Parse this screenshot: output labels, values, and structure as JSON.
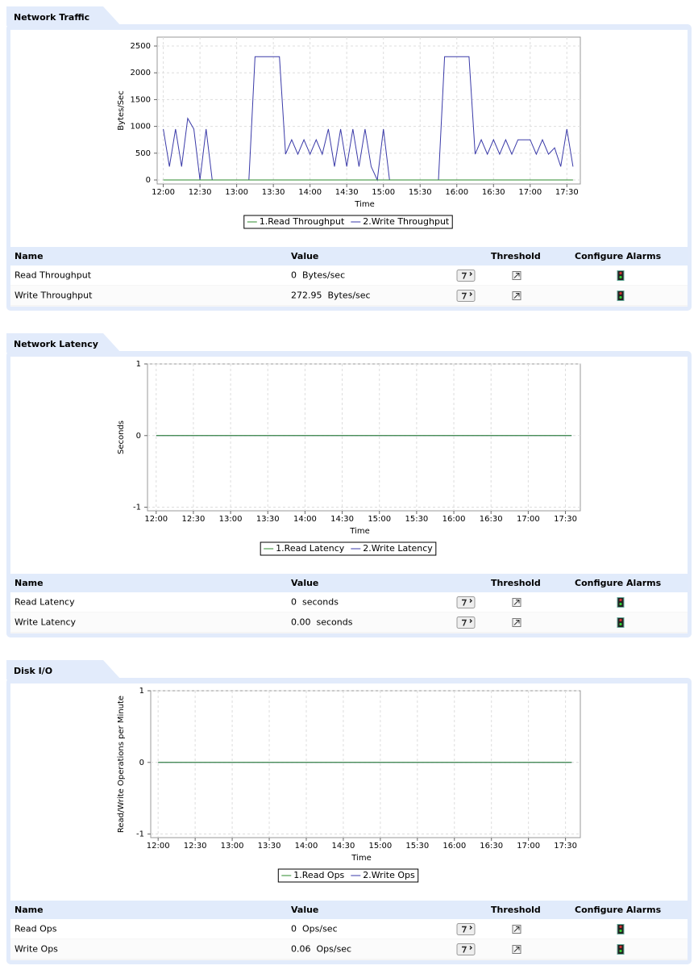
{
  "chart_data": [
    {
      "type": "line",
      "title": "Network Traffic",
      "x_label": "Time",
      "y_label": "Bytes/Sec",
      "x": [
        "12:00",
        "12:05",
        "12:10",
        "12:15",
        "12:20",
        "12:25",
        "12:30",
        "12:35",
        "12:40",
        "12:45",
        "12:50",
        "12:55",
        "13:00",
        "13:05",
        "13:10",
        "13:15",
        "13:20",
        "13:25",
        "13:30",
        "13:35",
        "13:40",
        "13:45",
        "13:50",
        "13:55",
        "14:00",
        "14:05",
        "14:10",
        "14:15",
        "14:20",
        "14:25",
        "14:30",
        "14:35",
        "14:40",
        "14:45",
        "14:50",
        "14:55",
        "15:00",
        "15:05",
        "15:10",
        "15:15",
        "15:20",
        "15:25",
        "15:30",
        "15:35",
        "15:40",
        "15:45",
        "15:50",
        "15:55",
        "16:00",
        "16:05",
        "16:10",
        "16:15",
        "16:20",
        "16:25",
        "16:30",
        "16:35",
        "16:40",
        "16:45",
        "16:50",
        "16:55",
        "17:00",
        "17:05",
        "17:10",
        "17:15",
        "17:20",
        "17:25",
        "17:30",
        "17:35"
      ],
      "xlim": [
        "11:55",
        "17:41"
      ],
      "xticks": [
        "12:00",
        "12:30",
        "13:00",
        "13:30",
        "14:00",
        "14:30",
        "15:00",
        "15:30",
        "16:00",
        "16:30",
        "17:00",
        "17:30"
      ],
      "ylim": [
        -75,
        2666
      ],
      "yticks": [
        0,
        500,
        1000,
        1500,
        2000,
        2500
      ],
      "grid": true,
      "series": [
        {
          "name": "1.Read Throughput",
          "color": "#2e8b2e",
          "values": [
            0,
            0,
            0,
            0,
            0,
            0,
            0,
            0,
            0,
            0,
            0,
            0,
            0,
            0,
            0,
            0,
            0,
            0,
            0,
            0,
            0,
            0,
            0,
            0,
            0,
            0,
            0,
            0,
            0,
            0,
            0,
            0,
            0,
            0,
            0,
            0,
            0,
            0,
            0,
            0,
            0,
            0,
            0,
            0,
            0,
            0,
            0,
            0,
            0,
            0,
            0,
            0,
            0,
            0,
            0,
            0,
            0,
            0,
            0,
            0,
            0,
            0,
            0,
            0,
            0,
            0,
            0,
            0
          ]
        },
        {
          "name": "2.Write Throughput",
          "color": "#3a3aa8",
          "values": [
            950,
            250,
            950,
            250,
            1150,
            950,
            0,
            950,
            0,
            0,
            0,
            0,
            0,
            0,
            0,
            2300,
            2300,
            2300,
            2300,
            2300,
            480,
            750,
            480,
            750,
            480,
            750,
            480,
            950,
            250,
            950,
            250,
            950,
            250,
            950,
            250,
            0,
            950,
            0,
            0,
            0,
            0,
            0,
            0,
            0,
            0,
            0,
            2300,
            2300,
            2300,
            2300,
            2300,
            480,
            750,
            480,
            750,
            480,
            750,
            480,
            750,
            750,
            750,
            480,
            750,
            480,
            600,
            250,
            950,
            250
          ]
        }
      ]
    },
    {
      "type": "line",
      "title": "Network Latency",
      "x_label": "Time",
      "y_label": "Seconds",
      "x": [
        "12:00",
        "12:05",
        "12:10",
        "12:15",
        "12:20",
        "12:25",
        "12:30",
        "12:35",
        "12:40",
        "12:45",
        "12:50",
        "12:55",
        "13:00",
        "13:05",
        "13:10",
        "13:15",
        "13:20",
        "13:25",
        "13:30",
        "13:35",
        "13:40",
        "13:45",
        "13:50",
        "13:55",
        "14:00",
        "14:05",
        "14:10",
        "14:15",
        "14:20",
        "14:25",
        "14:30",
        "14:35",
        "14:40",
        "14:45",
        "14:50",
        "14:55",
        "15:00",
        "15:05",
        "15:10",
        "15:15",
        "15:20",
        "15:25",
        "15:30",
        "15:35",
        "15:40",
        "15:45",
        "15:50",
        "15:55",
        "16:00",
        "16:05",
        "16:10",
        "16:15",
        "16:20",
        "16:25",
        "16:30",
        "16:35",
        "16:40",
        "16:45",
        "16:50",
        "16:55",
        "17:00",
        "17:05",
        "17:10",
        "17:15",
        "17:20",
        "17:25",
        "17:30",
        "17:35"
      ],
      "xlim": [
        "11:53",
        "17:42"
      ],
      "xticks": [
        "12:00",
        "12:30",
        "13:00",
        "13:30",
        "14:00",
        "14:30",
        "15:00",
        "15:30",
        "16:00",
        "16:30",
        "17:00",
        "17:30"
      ],
      "ylim": [
        -1.05,
        1
      ],
      "yticks": [
        -1,
        0,
        1
      ],
      "grid": true,
      "series": [
        {
          "name": "1.Read Latency",
          "color": "#2e8b2e",
          "values": [
            0,
            0,
            0,
            0,
            0,
            0,
            0,
            0,
            0,
            0,
            0,
            0,
            0,
            0,
            0,
            0,
            0,
            0,
            0,
            0,
            0,
            0,
            0,
            0,
            0,
            0,
            0,
            0,
            0,
            0,
            0,
            0,
            0,
            0,
            0,
            0,
            0,
            0,
            0,
            0,
            0,
            0,
            0,
            0,
            0,
            0,
            0,
            0,
            0,
            0,
            0,
            0,
            0,
            0,
            0,
            0,
            0,
            0,
            0,
            0,
            0,
            0,
            0,
            0,
            0,
            0,
            0,
            0
          ]
        },
        {
          "name": "2.Write Latency",
          "color": "#3a3aa8",
          "values": [
            0,
            0,
            0,
            0,
            0,
            0,
            0,
            0,
            0,
            0,
            0,
            0,
            0,
            0,
            0,
            0,
            0,
            0,
            0,
            0,
            0,
            0,
            0,
            0,
            0,
            0,
            0,
            0,
            0,
            0,
            0,
            0,
            0,
            0,
            0,
            0,
            0,
            0,
            0,
            0,
            0,
            0,
            0,
            0,
            0,
            0,
            0,
            0,
            0,
            0,
            0,
            0,
            0,
            0,
            0,
            0,
            0,
            0,
            0,
            0,
            0,
            0,
            0,
            0,
            0,
            0,
            0,
            0
          ]
        }
      ]
    },
    {
      "type": "line",
      "title": "Disk I/O",
      "x_label": "Time",
      "y_label": "Read/Write Operations per Minute",
      "x": [
        "12:00",
        "12:05",
        "12:10",
        "12:15",
        "12:20",
        "12:25",
        "12:30",
        "12:35",
        "12:40",
        "12:45",
        "12:50",
        "12:55",
        "13:00",
        "13:05",
        "13:10",
        "13:15",
        "13:20",
        "13:25",
        "13:30",
        "13:35",
        "13:40",
        "13:45",
        "13:50",
        "13:55",
        "14:00",
        "14:05",
        "14:10",
        "14:15",
        "14:20",
        "14:25",
        "14:30",
        "14:35",
        "14:40",
        "14:45",
        "14:50",
        "14:55",
        "15:00",
        "15:05",
        "15:10",
        "15:15",
        "15:20",
        "15:25",
        "15:30",
        "15:35",
        "15:40",
        "15:45",
        "15:50",
        "15:55",
        "16:00",
        "16:05",
        "16:10",
        "16:15",
        "16:20",
        "16:25",
        "16:30",
        "16:35",
        "16:40",
        "16:45",
        "16:50",
        "16:55",
        "17:00",
        "17:05",
        "17:10",
        "17:15",
        "17:20",
        "17:25",
        "17:30",
        "17:35"
      ],
      "xlim": [
        "11:54",
        "17:42"
      ],
      "xticks": [
        "12:00",
        "12:30",
        "13:00",
        "13:30",
        "14:00",
        "14:30",
        "15:00",
        "15:30",
        "16:00",
        "16:30",
        "17:00",
        "17:30"
      ],
      "ylim": [
        -1.05,
        1
      ],
      "yticks": [
        -1,
        0,
        1
      ],
      "grid": true,
      "series": [
        {
          "name": "1.Read Ops",
          "color": "#2e8b2e",
          "values": [
            0,
            0,
            0,
            0,
            0,
            0,
            0,
            0,
            0,
            0,
            0,
            0,
            0,
            0,
            0,
            0,
            0,
            0,
            0,
            0,
            0,
            0,
            0,
            0,
            0,
            0,
            0,
            0,
            0,
            0,
            0,
            0,
            0,
            0,
            0,
            0,
            0,
            0,
            0,
            0,
            0,
            0,
            0,
            0,
            0,
            0,
            0,
            0,
            0,
            0,
            0,
            0,
            0,
            0,
            0,
            0,
            0,
            0,
            0,
            0,
            0,
            0,
            0,
            0,
            0,
            0,
            0,
            0
          ]
        },
        {
          "name": "2.Write Ops",
          "color": "#3a3aa8",
          "values": [
            0,
            0,
            0,
            0,
            0,
            0,
            0,
            0,
            0,
            0,
            0,
            0,
            0,
            0,
            0,
            0,
            0,
            0,
            0,
            0,
            0,
            0,
            0,
            0,
            0,
            0,
            0,
            0,
            0,
            0,
            0,
            0,
            0,
            0,
            0,
            0,
            0,
            0,
            0,
            0,
            0,
            0,
            0,
            0,
            0,
            0,
            0,
            0,
            0,
            0,
            0,
            0,
            0,
            0,
            0,
            0,
            0,
            0,
            0,
            0,
            0,
            0,
            0,
            0,
            0,
            0,
            0,
            0
          ]
        }
      ]
    }
  ],
  "tables": [
    {
      "header": [
        "Name",
        "Value",
        "Threshold",
        "Configure Alarms"
      ],
      "rows": [
        [
          "Read Throughput",
          "0  Bytes/sec"
        ],
        [
          "Write Throughput",
          "272.95  Bytes/sec"
        ]
      ]
    },
    {
      "header": [
        "Name",
        "Value",
        "Threshold",
        "Configure Alarms"
      ],
      "rows": [
        [
          "Read Latency",
          "0  seconds"
        ],
        [
          "Write Latency",
          "0.00  seconds"
        ]
      ]
    },
    {
      "header": [
        "Name",
        "Value",
        "Threshold",
        "Configure Alarms"
      ],
      "rows": [
        [
          "Read Ops",
          "0  Ops/sec"
        ],
        [
          "Write Ops",
          "0.06  Ops/sec"
        ]
      ]
    }
  ]
}
